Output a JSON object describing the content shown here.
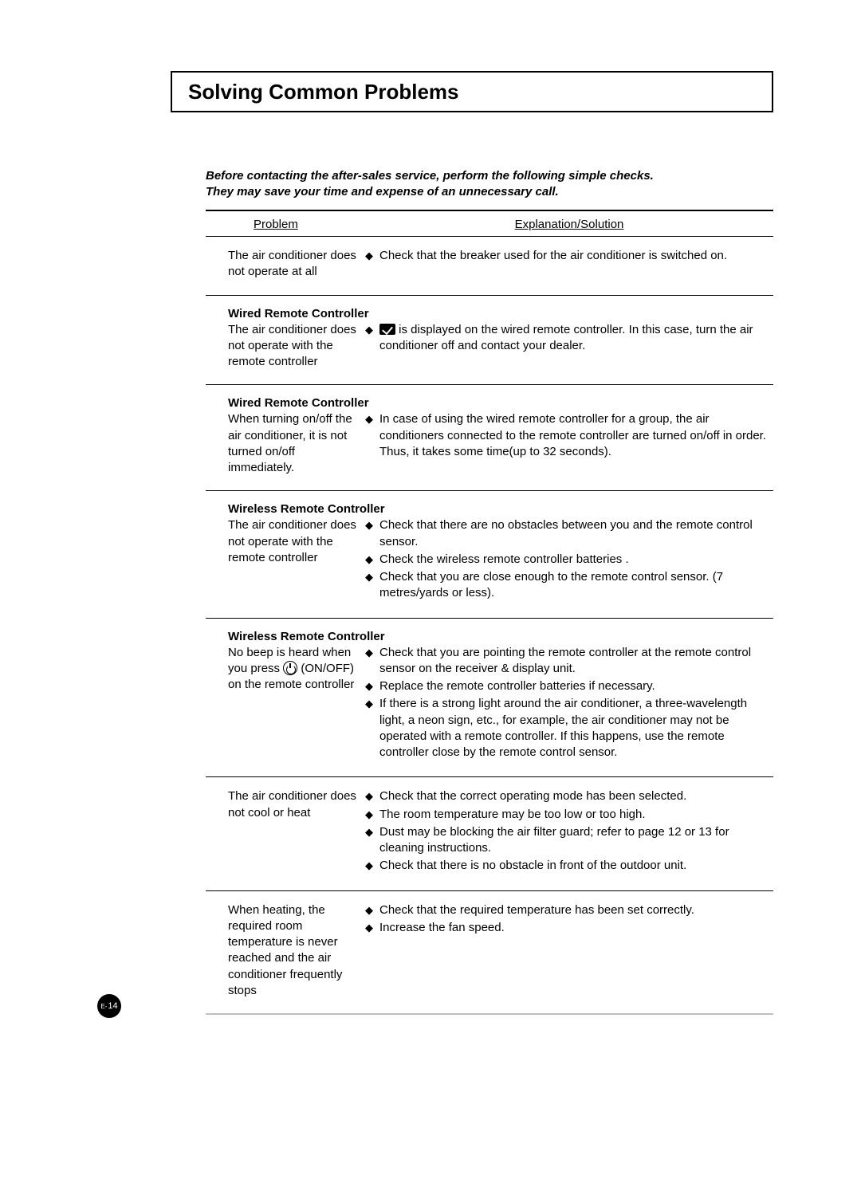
{
  "title": "Solving Common Problems",
  "intro_line1": "Before contacting the after-sales service, perform the following simple checks.",
  "intro_line2": "They may save your time and expense of an unnecessary call.",
  "headers": {
    "problem": "Problem",
    "solution": "Explanation/Solution"
  },
  "sections": [
    {
      "label": "",
      "problem": "The air conditioner does not operate at all",
      "bullets": [
        "Check that the breaker used for the air conditioner is switched on."
      ]
    },
    {
      "label": "Wired Remote Controller",
      "problem": "The air conditioner does not operate with the remote controller",
      "bullets_raw": [
        {
          "pre_icon": "box",
          "post": " is displayed on the wired remote controller. In this case, turn the air conditioner off and contact your dealer."
        }
      ]
    },
    {
      "label": "Wired Remote Controller",
      "problem": "When turning on/off the air conditioner, it is not turned on/off immediately.",
      "bullets": [
        "In case of using the wired remote controller for a group, the air conditioners connected to the remote controller are turned on/off in order. Thus, it takes some time(up to 32 seconds)."
      ]
    },
    {
      "label": "Wireless Remote Controller",
      "problem": "The air conditioner does not operate with the remote controller",
      "bullets": [
        "Check that there are no obstacles between you and the remote control sensor.",
        "Check the wireless remote controller batteries .",
        "Check that you are close enough to the remote control sensor. (7 metres/yards or less)."
      ]
    },
    {
      "label": "Wireless Remote Controller",
      "problem_raw": {
        "pre": "No beep is heard when you press ",
        "icon": "circle",
        "post": " (ON/OFF) on the remote controller"
      },
      "bullets": [
        "Check that you are pointing the remote controller at the remote control sensor on the receiver & display unit.",
        "Replace the remote controller batteries if necessary.",
        "If there is a strong light around the air conditioner, a three-wavelength light, a neon sign, etc., for example, the air conditioner may not be operated with a remote controller. If this happens, use the remote controller close by the remote control sensor."
      ]
    },
    {
      "label": "",
      "problem": "The air conditioner does not cool or heat",
      "bullets": [
        "Check that the correct operating mode has been selected.",
        "The room temperature may be too low or too high.",
        "Dust may be blocking the air filter guard; refer to page 12 or 13 for cleaning instructions.",
        "Check that there is no obstacle in front of the outdoor unit."
      ]
    },
    {
      "label": "",
      "problem": "When heating, the required room temperature is never reached and the air conditioner frequently stops",
      "bullets": [
        "Check that the required temperature has been set correctly.",
        "Increase the fan speed."
      ]
    }
  ],
  "page_number": {
    "prefix": "E-",
    "num": "14"
  }
}
